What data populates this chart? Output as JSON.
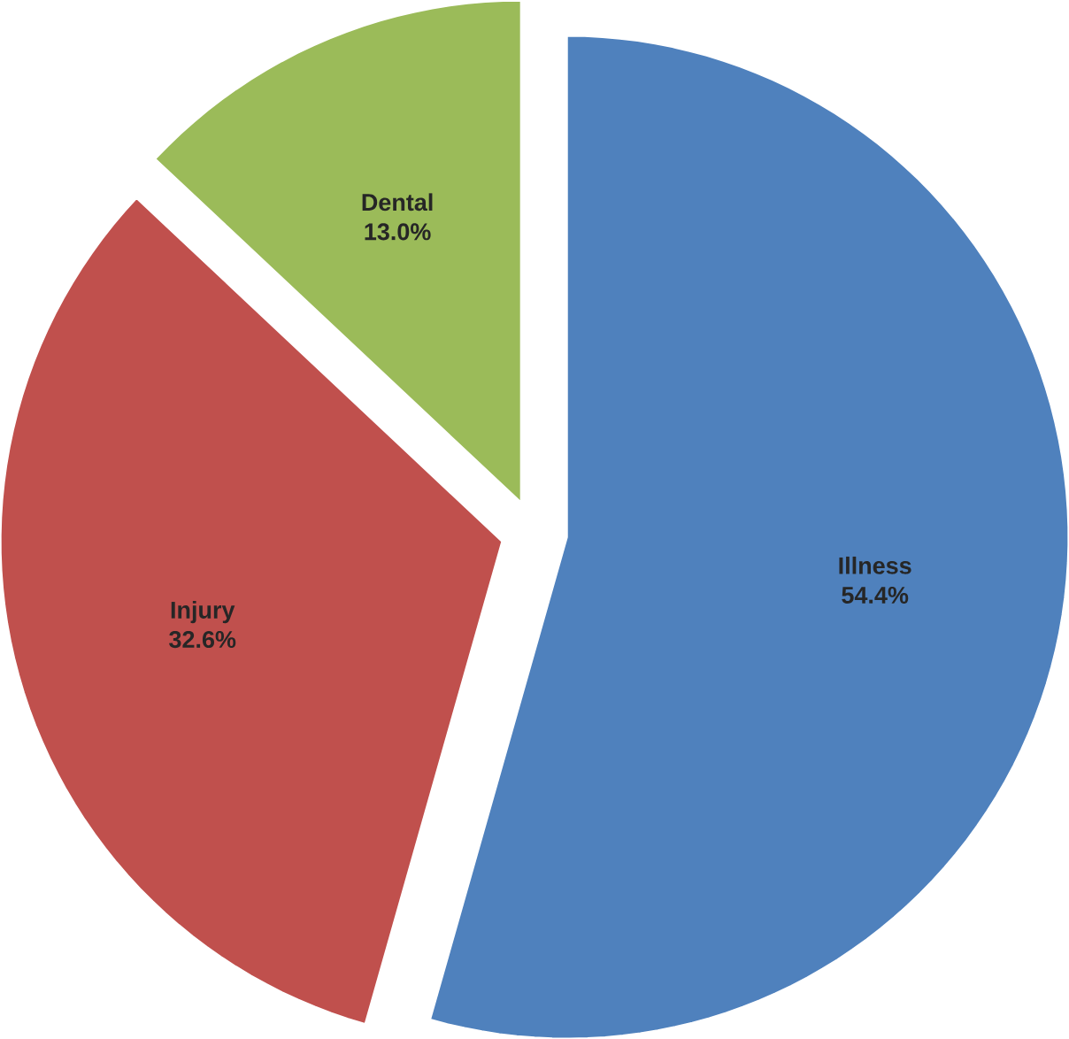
{
  "chart_data": {
    "type": "pie",
    "categories": [
      "Illness",
      "Injury",
      "Dental"
    ],
    "values": [
      54.4,
      32.6,
      13.0
    ],
    "colors": [
      "#4f81bd",
      "#c0504d",
      "#9bbb59"
    ],
    "value_labels": [
      "54.4%",
      "32.6%",
      "13.0%"
    ]
  }
}
